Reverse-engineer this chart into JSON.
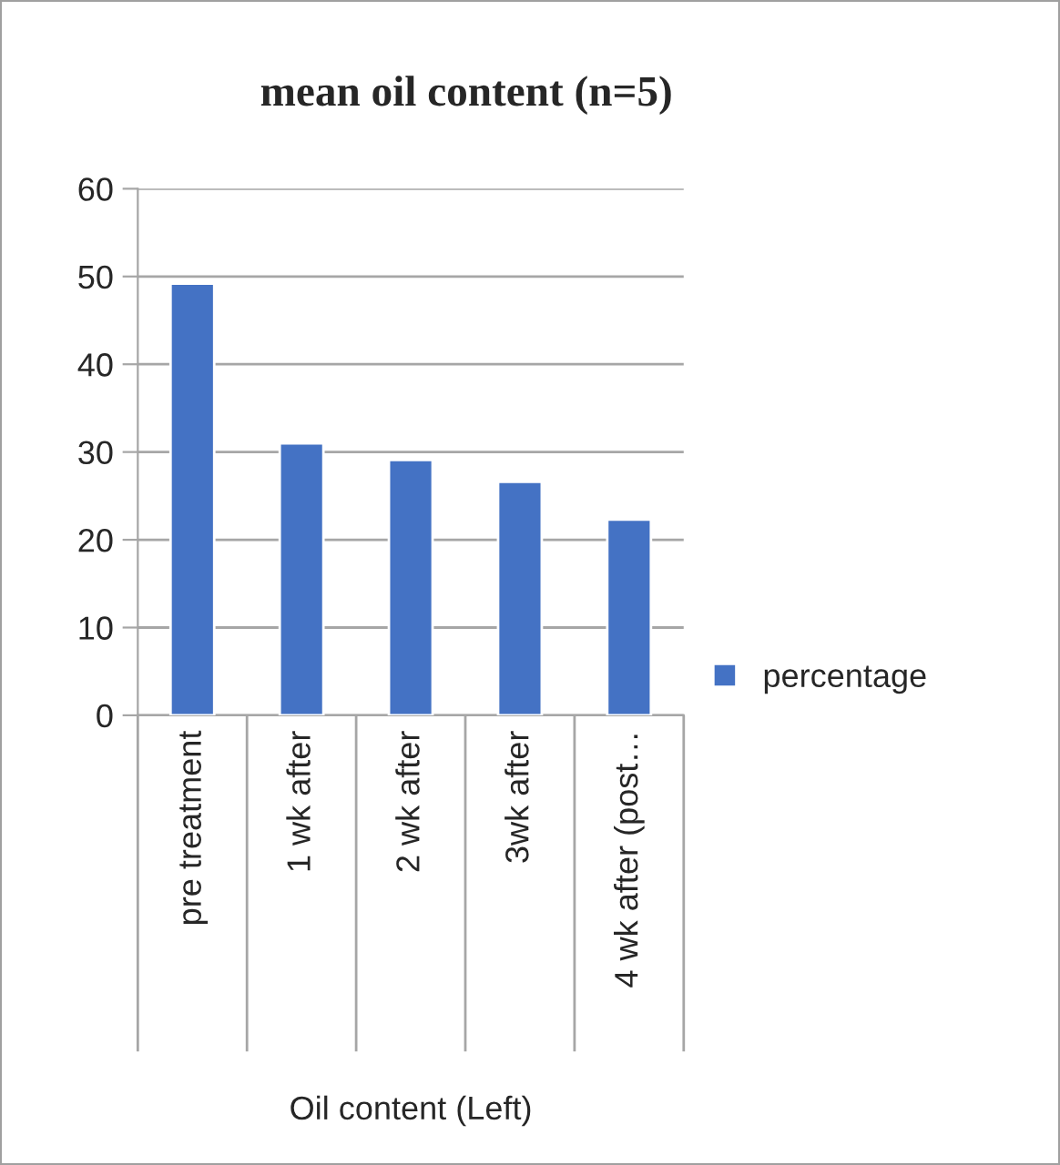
{
  "chart_data": {
    "type": "bar",
    "title": "mean oil content (n=5)",
    "xlabel": "Oil content (Left)",
    "categories": [
      "pre treatment",
      "1 wk after",
      "2 wk after",
      "3wk after",
      "4 wk after (post…"
    ],
    "series": [
      {
        "name": "percentage",
        "color": "#4472c4",
        "values": [
          49.2,
          31.0,
          29.1,
          26.6,
          22.3
        ]
      }
    ],
    "ylim": [
      0,
      60
    ],
    "yticks": [
      0,
      10,
      20,
      30,
      40,
      50,
      60
    ],
    "grid": "y",
    "legend": "right"
  }
}
